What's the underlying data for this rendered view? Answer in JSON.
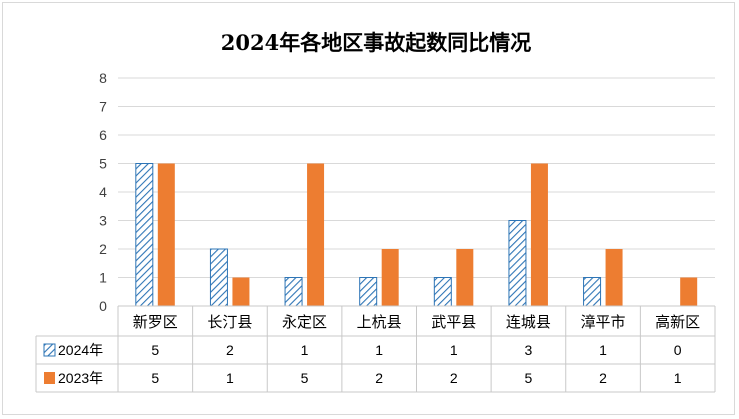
{
  "chart_data": {
    "type": "bar",
    "title": "2024年各地区事故起数同比情况",
    "categories": [
      "新罗区",
      "长汀县",
      "永定区",
      "上杭县",
      "武平县",
      "连城县",
      "漳平市",
      "高新区"
    ],
    "series": [
      {
        "name": "2024年",
        "values": [
          5,
          2,
          1,
          1,
          1,
          3,
          1,
          0
        ],
        "color": "#2E75B6",
        "fill": "hatched"
      },
      {
        "name": "2023年",
        "values": [
          5,
          1,
          5,
          2,
          2,
          5,
          2,
          1
        ],
        "color": "#ED7D31",
        "fill": "solid"
      }
    ],
    "ylim": [
      0,
      8
    ],
    "yticks": [
      0,
      1,
      2,
      3,
      4,
      5,
      6,
      7,
      8
    ],
    "grid": true,
    "legend": "data-table",
    "data_table": true
  }
}
